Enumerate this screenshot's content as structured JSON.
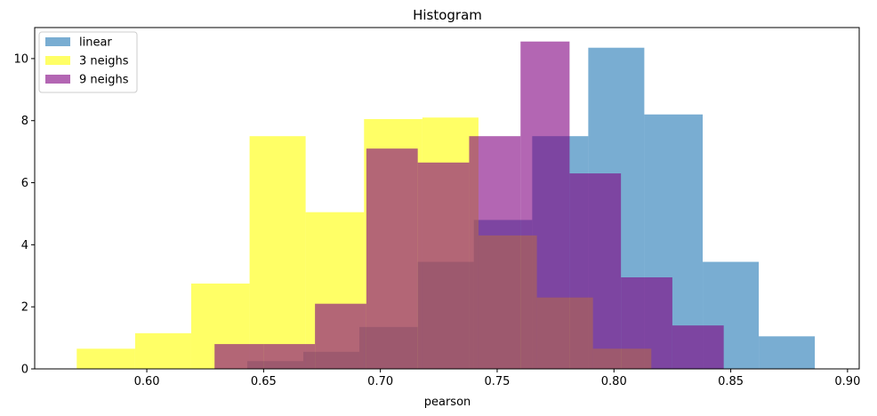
{
  "chart_data": {
    "type": "histogram",
    "title": "Histogram",
    "xlabel": "pearson",
    "ylabel": "",
    "xlim": [
      0.552,
      0.905
    ],
    "ylim": [
      0,
      11
    ],
    "xticks": [
      0.6,
      0.65,
      0.7,
      0.75,
      0.8,
      0.85,
      0.9
    ],
    "xtick_labels": [
      "0.60",
      "0.65",
      "0.70",
      "0.75",
      "0.80",
      "0.85",
      "0.90"
    ],
    "yticks": [
      0,
      2,
      4,
      6,
      8,
      10
    ],
    "ytick_labels": [
      "0",
      "2",
      "4",
      "6",
      "8",
      "10"
    ],
    "grid": false,
    "legend_position": "top-left",
    "series": [
      {
        "name": "linear",
        "color": "#1f77b4",
        "alpha": 0.6,
        "bins": [
          {
            "x0": 0.643,
            "x1": 0.667,
            "y": 0.25
          },
          {
            "x0": 0.667,
            "x1": 0.691,
            "y": 0.55
          },
          {
            "x0": 0.691,
            "x1": 0.716,
            "y": 1.35
          },
          {
            "x0": 0.716,
            "x1": 0.74,
            "y": 3.45
          },
          {
            "x0": 0.74,
            "x1": 0.765,
            "y": 4.8
          },
          {
            "x0": 0.765,
            "x1": 0.789,
            "y": 7.5
          },
          {
            "x0": 0.789,
            "x1": 0.813,
            "y": 10.35
          },
          {
            "x0": 0.813,
            "x1": 0.838,
            "y": 8.2
          },
          {
            "x0": 0.838,
            "x1": 0.862,
            "y": 3.45
          },
          {
            "x0": 0.862,
            "x1": 0.886,
            "y": 1.05
          }
        ]
      },
      {
        "name": "3 neighs",
        "color": "#ffff00",
        "alpha": 0.6,
        "bins": [
          {
            "x0": 0.57,
            "x1": 0.595,
            "y": 0.65
          },
          {
            "x0": 0.595,
            "x1": 0.619,
            "y": 1.15
          },
          {
            "x0": 0.619,
            "x1": 0.644,
            "y": 2.75
          },
          {
            "x0": 0.644,
            "x1": 0.668,
            "y": 7.5
          },
          {
            "x0": 0.668,
            "x1": 0.693,
            "y": 5.05
          },
          {
            "x0": 0.693,
            "x1": 0.718,
            "y": 8.05
          },
          {
            "x0": 0.718,
            "x1": 0.742,
            "y": 8.1
          },
          {
            "x0": 0.742,
            "x1": 0.767,
            "y": 4.3
          },
          {
            "x0": 0.767,
            "x1": 0.791,
            "y": 2.3
          },
          {
            "x0": 0.791,
            "x1": 0.816,
            "y": 0.65
          }
        ]
      },
      {
        "name": "9 neighs",
        "color": "#800080",
        "alpha": 0.6,
        "bins": [
          {
            "x0": 0.629,
            "x1": 0.65,
            "y": 0.8
          },
          {
            "x0": 0.65,
            "x1": 0.672,
            "y": 0.8
          },
          {
            "x0": 0.672,
            "x1": 0.694,
            "y": 2.1
          },
          {
            "x0": 0.694,
            "x1": 0.716,
            "y": 7.1
          },
          {
            "x0": 0.716,
            "x1": 0.738,
            "y": 6.65
          },
          {
            "x0": 0.738,
            "x1": 0.76,
            "y": 7.5
          },
          {
            "x0": 0.76,
            "x1": 0.781,
            "y": 10.55
          },
          {
            "x0": 0.781,
            "x1": 0.803,
            "y": 6.3
          },
          {
            "x0": 0.803,
            "x1": 0.825,
            "y": 2.95
          },
          {
            "x0": 0.825,
            "x1": 0.847,
            "y": 1.4
          }
        ]
      }
    ]
  }
}
